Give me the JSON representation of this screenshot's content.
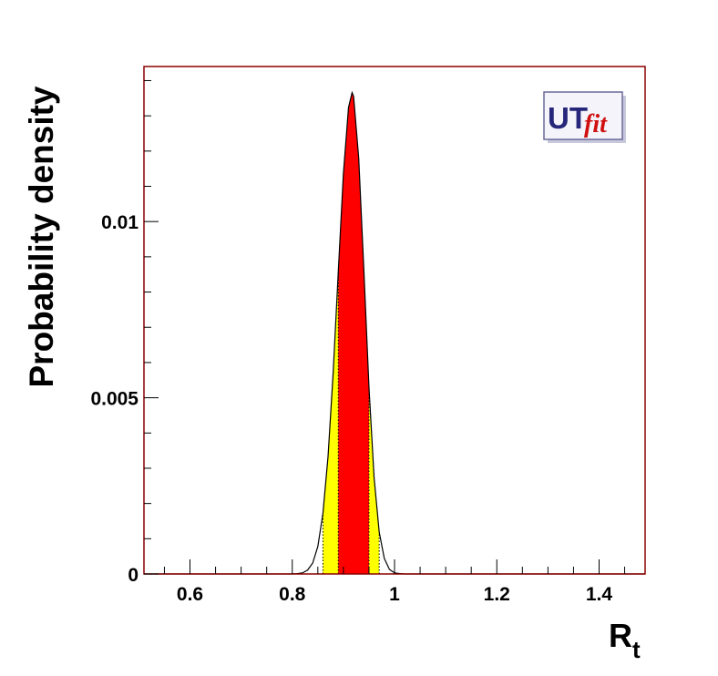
{
  "chart_data": {
    "type": "density",
    "ylabel": "Probability density",
    "xlabel": "R",
    "xlabel_subscript": "t",
    "logo": {
      "main": "UT",
      "accent": "fit"
    },
    "xlim": [
      0.51,
      1.49
    ],
    "ylim": [
      0,
      0.0144
    ],
    "xticks": [
      0.6,
      0.8,
      1,
      1.2,
      1.4
    ],
    "yticks": [
      0,
      0.005,
      0.01
    ],
    "xminorticks": [
      0.55,
      0.65,
      0.7,
      0.75,
      0.85,
      0.9,
      0.95,
      1.05,
      1.1,
      1.15,
      1.25,
      1.3,
      1.35,
      1.45
    ],
    "yminorticks": [
      0.001,
      0.002,
      0.003,
      0.004,
      0.006,
      0.007,
      0.008,
      0.009,
      0.011,
      0.012,
      0.013,
      0.014
    ],
    "frame_color": "#8b0000",
    "line_color": "#000000",
    "x": [
      0.51,
      0.8,
      0.81,
      0.82,
      0.83,
      0.84,
      0.85,
      0.86,
      0.87,
      0.88,
      0.89,
      0.9,
      0.91,
      0.917,
      0.92,
      0.93,
      0.94,
      0.95,
      0.96,
      0.97,
      0.98,
      0.99,
      1.0,
      1.01,
      1.02,
      1.49
    ],
    "values": [
      0,
      0,
      1e-05,
      3e-05,
      0.00011,
      0.00031,
      0.00078,
      0.00172,
      0.00334,
      0.00571,
      0.00858,
      0.01136,
      0.01324,
      0.01366,
      0.01355,
      0.01179,
      0.00863,
      0.00531,
      0.00274,
      0.00119,
      0.00044,
      0.00013,
      3e-05,
      1e-05,
      0,
      0
    ],
    "intervals": [
      {
        "range": [
          0.86,
          0.97
        ],
        "color": "#ffff00"
      },
      {
        "range": [
          0.89,
          0.95
        ],
        "color": "#ff0000"
      }
    ]
  }
}
